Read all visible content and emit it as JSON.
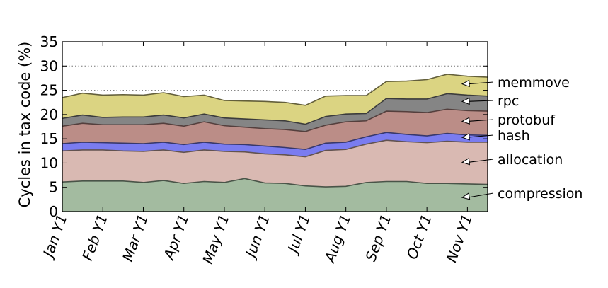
{
  "chart_data": {
    "type": "area",
    "stacked": true,
    "title": "",
    "xlabel": "",
    "ylabel": "Cycles in tax code (%)",
    "ylim": [
      0,
      35
    ],
    "yticks": [
      0,
      5,
      10,
      15,
      20,
      25,
      30,
      35
    ],
    "grid": "horizontal dotted",
    "x_tick_labels": [
      "Jan Y1",
      "Feb Y1",
      "Mar Y1",
      "Apr Y1",
      "May Y1",
      "Jun Y1",
      "Jul Y1",
      "Aug Y1",
      "Sep Y1",
      "Oct Y1",
      "Nov Y1"
    ],
    "x_ticks": [
      0,
      1,
      2,
      3,
      4,
      5,
      6,
      7,
      8,
      9,
      10
    ],
    "x": [
      0,
      0.5,
      1,
      1.5,
      2,
      2.5,
      3,
      3.5,
      4,
      4.5,
      5,
      5.5,
      6,
      6.5,
      7,
      7.5,
      8,
      8.5,
      9,
      9.5,
      10,
      10.5
    ],
    "series": [
      {
        "name": "compression",
        "color": "#a3bba0",
        "values": [
          6.1,
          6.3,
          6.3,
          6.3,
          6.0,
          6.4,
          5.8,
          6.2,
          6.0,
          6.8,
          5.9,
          5.8,
          5.3,
          5.1,
          5.2,
          6.0,
          6.2,
          6.2,
          5.8,
          5.8,
          5.7,
          5.6
        ]
      },
      {
        "name": "allocation",
        "color": "#d9b9b2",
        "values": [
          6.4,
          6.4,
          6.4,
          6.2,
          6.4,
          6.3,
          6.4,
          6.5,
          6.4,
          5.5,
          6.0,
          5.9,
          6.0,
          7.5,
          7.6,
          7.9,
          8.5,
          8.2,
          8.4,
          8.7,
          8.6,
          8.7
        ]
      },
      {
        "name": "hash",
        "color": "#7a7cf0",
        "values": [
          1.5,
          1.6,
          1.5,
          1.6,
          1.6,
          1.6,
          1.6,
          1.6,
          1.5,
          1.5,
          1.6,
          1.5,
          1.5,
          1.5,
          1.5,
          1.5,
          1.6,
          1.5,
          1.4,
          1.6,
          1.5,
          1.4
        ]
      },
      {
        "name": "protobuf",
        "color": "#bb8d87",
        "values": [
          3.6,
          3.9,
          3.7,
          3.8,
          3.9,
          3.9,
          3.8,
          4.2,
          3.8,
          3.6,
          3.6,
          3.7,
          3.7,
          3.7,
          4.2,
          3.3,
          4.4,
          4.7,
          4.8,
          5.0,
          5.0,
          5.0
        ]
      },
      {
        "name": "rpc",
        "color": "#858585",
        "values": [
          1.6,
          1.7,
          1.5,
          1.6,
          1.6,
          1.7,
          1.7,
          1.6,
          1.6,
          1.7,
          1.8,
          1.8,
          1.5,
          1.8,
          1.6,
          1.5,
          2.6,
          2.6,
          2.8,
          3.2,
          3.2,
          3.1
        ]
      },
      {
        "name": "memmove",
        "color": "#dbd482",
        "values": [
          4.3,
          4.5,
          4.6,
          4.6,
          4.5,
          4.6,
          4.4,
          3.9,
          3.6,
          3.7,
          3.8,
          3.8,
          3.9,
          4.2,
          3.8,
          3.7,
          3.5,
          3.7,
          4.0,
          4.0,
          3.9,
          3.9
        ]
      }
    ],
    "annotations": [
      {
        "label": "memmove",
        "series": "memmove"
      },
      {
        "label": "rpc",
        "series": "rpc"
      },
      {
        "label": "protobuf",
        "series": "protobuf"
      },
      {
        "label": "hash",
        "series": "hash"
      },
      {
        "label": "allocation",
        "series": "allocation"
      },
      {
        "label": "compression",
        "series": "compression"
      }
    ]
  }
}
